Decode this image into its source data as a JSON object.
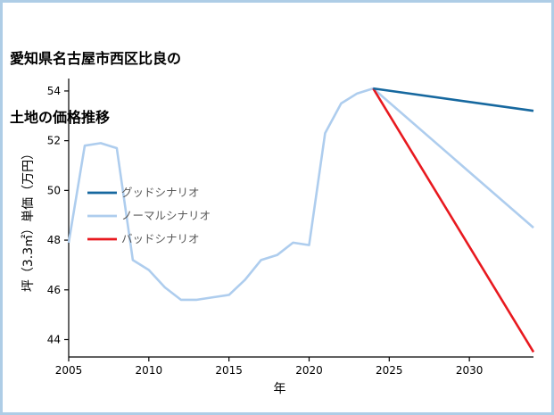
{
  "page": {
    "title_line1": "愛知県名古屋市西区比良の",
    "title_line2": "土地の価格推移"
  },
  "chart_data": {
    "type": "line",
    "title": "愛知県名古屋市西区比良の土地の価格推移",
    "xlabel": "年",
    "ylabel": "坪（3.3㎡）単価（万円）",
    "xlim": [
      2005,
      2034
    ],
    "ylim": [
      43.3,
      54.5
    ],
    "xticks": [
      2005,
      2010,
      2015,
      2020,
      2025,
      2030
    ],
    "yticks": [
      44,
      46,
      48,
      50,
      52,
      54
    ],
    "grid": false,
    "legend_position": "center-left",
    "series": [
      {
        "name": "グッドシナリオ",
        "color": "#16689f",
        "x": [
          2024,
          2034
        ],
        "y": [
          54.1,
          53.2
        ]
      },
      {
        "name": "ノーマルシナリオ",
        "color": "#aecdee",
        "x": [
          2005,
          2006,
          2007,
          2008,
          2009,
          2010,
          2011,
          2012,
          2013,
          2014,
          2015,
          2016,
          2017,
          2018,
          2019,
          2020,
          2021,
          2022,
          2023,
          2024,
          2034
        ],
        "y": [
          47.9,
          51.8,
          51.9,
          51.7,
          47.2,
          46.8,
          46.1,
          45.6,
          45.6,
          45.7,
          45.8,
          46.4,
          47.2,
          47.4,
          47.9,
          47.8,
          52.3,
          53.5,
          53.9,
          54.1,
          48.5
        ]
      },
      {
        "name": "バッドシナリオ",
        "color": "#e8191f",
        "x": [
          2024,
          2034
        ],
        "y": [
          54.1,
          43.5
        ]
      }
    ]
  },
  "colors": {
    "frame_border": "#aecde6",
    "axis": "#000000",
    "tick_text": "#000000",
    "legend_text": "#595959"
  }
}
